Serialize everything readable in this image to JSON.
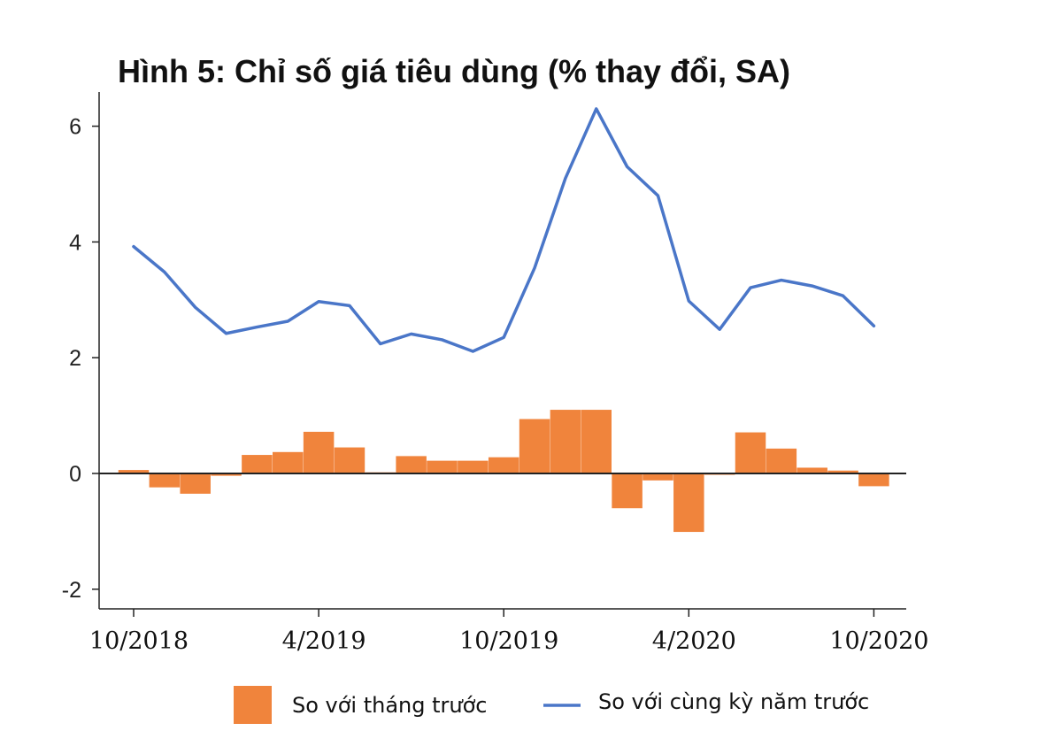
{
  "chart_data": {
    "type": "bar+line",
    "title": "Hình 5: Chỉ số giá tiêu dùng (% thay đổi, SA)",
    "xlabel": "",
    "ylabel": "",
    "ylim": [
      -2.3,
      6.6
    ],
    "yticks": [
      "6",
      "4",
      "2",
      "0",
      "-2"
    ],
    "x_tick_labels": [
      "10/2018",
      "4/2019",
      "10/2019",
      "4/2020",
      "10/2020"
    ],
    "categories": [
      "10/2018",
      "11/2018",
      "12/2018",
      "1/2019",
      "2/2019",
      "3/2019",
      "4/2019",
      "5/2019",
      "6/2019",
      "7/2019",
      "8/2019",
      "9/2019",
      "10/2019",
      "11/2019",
      "12/2019",
      "1/2020",
      "2/2020",
      "3/2020",
      "4/2020",
      "5/2020",
      "6/2020",
      "7/2020",
      "8/2020",
      "9/2020",
      "10/2020"
    ],
    "grid": false,
    "legend_position": "bottom",
    "series": [
      {
        "name": "So với tháng trước",
        "kind": "bar",
        "color": "#f0843c",
        "values": [
          0.06,
          -0.24,
          -0.35,
          -0.04,
          0.32,
          0.37,
          0.72,
          0.45,
          0.02,
          0.3,
          0.22,
          0.22,
          0.28,
          0.94,
          1.1,
          1.1,
          -0.6,
          -0.12,
          -1.01,
          0.0,
          0.71,
          0.43,
          0.1,
          0.05,
          -0.22
        ]
      },
      {
        "name": "So với cùng kỳ năm trước",
        "kind": "line",
        "color": "#4a76c8",
        "values": [
          3.92,
          3.48,
          2.87,
          2.42,
          2.53,
          2.63,
          2.97,
          2.9,
          2.24,
          2.41,
          2.31,
          2.11,
          2.35,
          3.55,
          5.1,
          6.3,
          5.3,
          4.8,
          2.98,
          2.49,
          3.21,
          3.34,
          3.24,
          3.07,
          2.55
        ]
      }
    ]
  }
}
